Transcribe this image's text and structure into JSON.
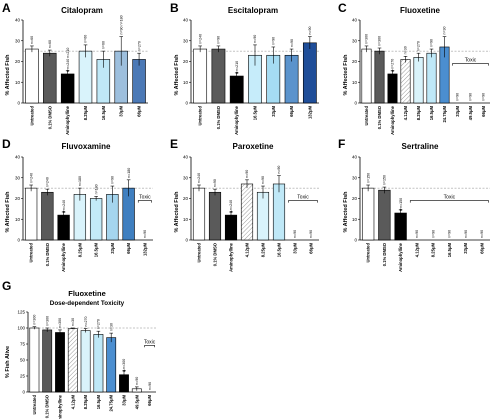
{
  "chart_data": [
    {
      "letter": "A",
      "title": "Citalopram",
      "type": "bar",
      "ylabel": "% Affected Fish",
      "ylim": [
        0,
        40
      ],
      "yticks": [
        0,
        10,
        20,
        30,
        40
      ],
      "categories": [
        "Untreated",
        "0.1% DMSO",
        "Aminophylline",
        "8.25μM",
        "16.5μM",
        "33μM",
        "66μM"
      ],
      "values": [
        26,
        24,
        14,
        25,
        21,
        25,
        21
      ],
      "errors": [
        1.5,
        1.5,
        1.5,
        3,
        4,
        7,
        3
      ],
      "n_labels": [
        "n=60",
        "n=60",
        "n=240 n=210",
        "n=60",
        "n=60",
        "n=90 n=180",
        "n=270"
      ],
      "star_index": 2,
      "reference_line": 25,
      "toxic_label": "",
      "colors": [
        "#ffffff",
        "#5a5a5a",
        "#000000",
        "#d9f3fb",
        "#bfe8f7",
        "#9dbfdd",
        "#4b79b6"
      ]
    },
    {
      "letter": "B",
      "title": "Escitalopram",
      "type": "bar",
      "ylabel": "% Affected Fish",
      "ylim": [
        0,
        40
      ],
      "yticks": [
        0,
        10,
        20,
        30,
        40
      ],
      "categories": [
        "Untreated",
        "0.1% DMSO",
        "Aminophylline",
        "16.5μM",
        "33μM",
        "66μM",
        "132μM"
      ],
      "values": [
        26,
        26,
        13,
        23,
        23,
        23,
        29
      ],
      "errors": [
        1.5,
        1.5,
        1.5,
        5,
        4,
        3,
        3
      ],
      "n_labels": [
        "n=240",
        "n=90",
        "n=210",
        "n=90",
        "n=90",
        "n=90",
        "n=90"
      ],
      "star_index": 2,
      "reference_line": 25,
      "toxic_label": "",
      "colors": [
        "#ffffff",
        "#5a5a5a",
        "#000000",
        "#c6ecfa",
        "#a5dcf3",
        "#5b93cc",
        "#1f4e99"
      ]
    },
    {
      "letter": "C",
      "title": "Fluoxetine",
      "type": "bar",
      "ylabel": "% Affected Fish",
      "ylim": [
        0,
        40
      ],
      "yticks": [
        0,
        10,
        20,
        30,
        40
      ],
      "categories": [
        "Untreated",
        "0.1% DMSO",
        "Aminophylline",
        "4.12μM",
        "8.25μM",
        "16.5μM",
        "24.75μM",
        "33μM",
        "49.5μM",
        "66μM"
      ],
      "values": [
        26,
        25,
        14,
        21,
        22,
        24,
        27,
        0,
        0,
        0
      ],
      "errors": [
        1.5,
        1.5,
        1.5,
        1.5,
        2,
        2,
        5,
        0,
        0,
        0
      ],
      "n_labels": [
        "n=300",
        "n=300",
        "n=270",
        "n=30",
        "n=270",
        "n=90",
        "n=30",
        "n=90",
        "n=90",
        "n=90"
      ],
      "star_index": 2,
      "reference_line": 25,
      "toxic_label": "Toxic",
      "colors": [
        "#ffffff",
        "#5a5a5a",
        "#000000",
        "#e8e8e8",
        "#d9f3fb",
        "#bfe8f7",
        "#4b8ed0",
        "#ffffff",
        "#ffffff",
        "#ffffff"
      ]
    },
    {
      "letter": "D",
      "title": "Fluvoxamine",
      "type": "bar",
      "ylabel": "% Affected Fish",
      "ylim": [
        0,
        40
      ],
      "yticks": [
        0,
        10,
        20,
        30,
        40
      ],
      "categories": [
        "Untreated",
        "0.1% DMSO",
        "Aminophylline",
        "8.25μM",
        "16.5μM",
        "33μM",
        "66μM",
        "132μM"
      ],
      "values": [
        25,
        23,
        12,
        22,
        20,
        22,
        25,
        0
      ],
      "errors": [
        1.5,
        1.5,
        1.5,
        3,
        1,
        4,
        4,
        0
      ],
      "n_labels": [
        "n=240",
        "n=240",
        "n=240",
        "n=180",
        "n=180",
        "n=90",
        "n=180",
        "n=90"
      ],
      "star_index": 2,
      "reference_line": 25,
      "toxic_label": "Toxic",
      "colors": [
        "#ffffff",
        "#5a5a5a",
        "#000000",
        "#d9f3fb",
        "#c3ebf8",
        "#a5d5ee",
        "#3f7fc0",
        "#ffffff"
      ]
    },
    {
      "letter": "E",
      "title": "Paroxetine",
      "type": "bar",
      "ylabel": "% Affected Fish",
      "ylim": [
        0,
        40
      ],
      "yticks": [
        0,
        10,
        20,
        30,
        40
      ],
      "categories": [
        "Untreated",
        "0.1% DMSO",
        "Aminophylline",
        "4.12μM",
        "8.25μM",
        "16.5μM",
        "33μM",
        "66μM"
      ],
      "values": [
        25,
        23,
        12,
        27,
        23,
        27,
        0,
        0
      ],
      "errors": [
        1.5,
        1.5,
        1.5,
        2,
        3,
        4,
        0,
        0
      ],
      "n_labels": [
        "n=240",
        "n=90",
        "n=240",
        "n=90",
        "n=90",
        "n=90",
        "n=90",
        "n=90"
      ],
      "star_index": 2,
      "reference_line": 25,
      "toxic_label": "Toxic",
      "colors": [
        "#ffffff",
        "#5a5a5a",
        "#000000",
        "#e8e8e8",
        "#d9f3fb",
        "#bfe8f7",
        "#ffffff",
        "#ffffff"
      ]
    },
    {
      "letter": "F",
      "title": "Sertraline",
      "type": "bar",
      "ylabel": "% Affected Fish",
      "ylim": [
        0,
        40
      ],
      "yticks": [
        0,
        10,
        20,
        30,
        40
      ],
      "categories": [
        "Untreated",
        "0.1% DMSO",
        "Aminophylline",
        "4.12μM",
        "8.25μM",
        "16.5μM",
        "33μM",
        "66μM"
      ],
      "values": [
        25,
        24,
        13,
        0,
        0,
        0,
        0,
        0
      ],
      "errors": [
        1.5,
        1.5,
        1.5,
        0,
        0,
        0,
        0,
        0
      ],
      "n_labels": [
        "n=150",
        "n=150",
        "n=150",
        "n=90",
        "n=90",
        "n=90",
        "n=90",
        "n=90"
      ],
      "star_index": 2,
      "reference_line": 25,
      "toxic_label": "Toxic",
      "colors": [
        "#ffffff",
        "#5a5a5a",
        "#000000",
        "#ffffff",
        "#ffffff",
        "#ffffff",
        "#ffffff",
        "#ffffff"
      ]
    },
    {
      "letter": "G",
      "title": "Fluoxetine",
      "subtitle": "Dose-dependent Toxicity",
      "type": "bar",
      "ylabel": "% Fish Alive",
      "ylim": [
        0,
        125
      ],
      "yticks": [
        0,
        25,
        50,
        75,
        100,
        125
      ],
      "categories": [
        "Untreated",
        "0.1% DMSO",
        "Aminophylline",
        "4.12μM",
        "8.25μM",
        "16.5μM",
        "24.75μM",
        "33μM",
        "49.5μM",
        "66μM"
      ],
      "values": [
        100,
        97,
        93,
        99,
        96,
        90,
        85,
        27,
        5,
        0
      ],
      "errors": [
        2,
        3,
        4,
        1,
        3,
        5,
        7,
        6,
        3,
        0
      ],
      "n_labels": [
        "n=300",
        "n=300",
        "n=300",
        "n=30",
        "n=270",
        "n=270",
        "n=30",
        "n=300",
        "n=90",
        "n=90"
      ],
      "star_index": 7,
      "reference_line": 100,
      "toxic_label": "Toxic",
      "colors": [
        "#ffffff",
        "#5a5a5a",
        "#000000",
        "#e8e8e8",
        "#d9f3fb",
        "#bfe8f7",
        "#4b8ed0",
        "#000000",
        "#ffffff",
        "#ffffff"
      ]
    }
  ]
}
